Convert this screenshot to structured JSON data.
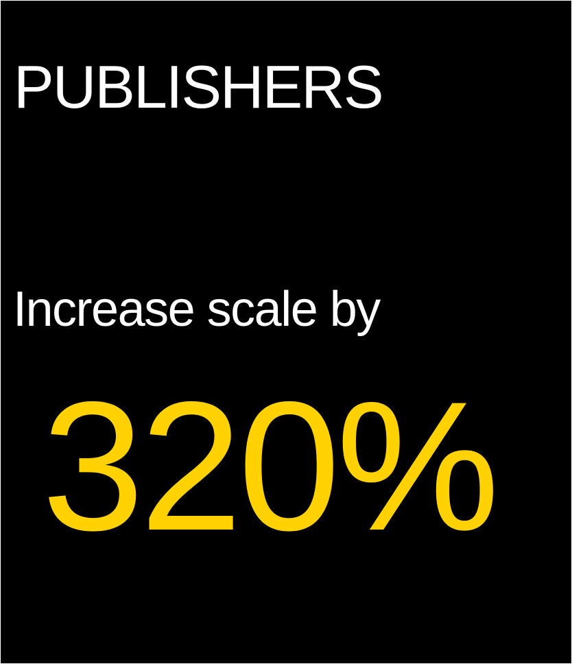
{
  "card": {
    "heading": "PUBLISHERS",
    "subtext": "Increase scale by",
    "stat": "320%"
  },
  "colors": {
    "background": "#000000",
    "text": "#ffffff",
    "accent": "#ffd200"
  }
}
